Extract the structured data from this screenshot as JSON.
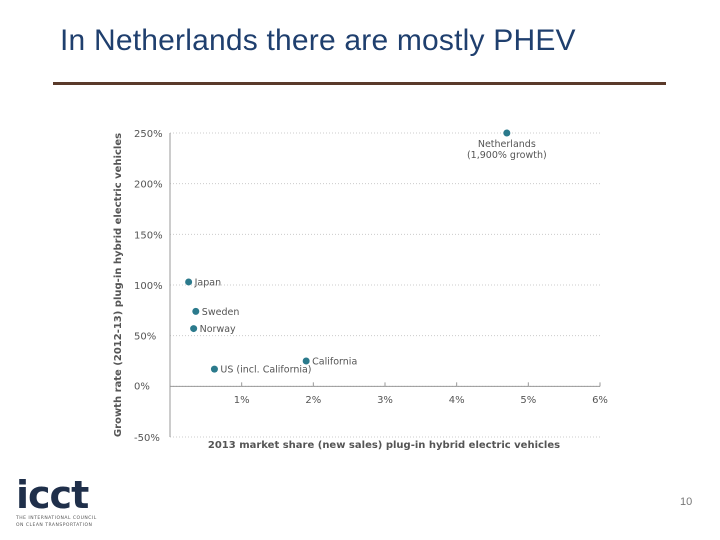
{
  "slide": {
    "title": "In Netherlands there are mostly PHEV",
    "page_number": "10"
  },
  "logo": {
    "name": "icct",
    "tagline_line1": "THE INTERNATIONAL COUNCIL",
    "tagline_line2": "ON CLEAN TRANSPORTATION"
  },
  "colors": {
    "title": "#1f3f6e",
    "rule": "#5a3a2a",
    "point": "#2b7a8c",
    "grid": "#cccccc",
    "text": "#555555"
  },
  "chart_data": {
    "type": "scatter",
    "xlabel": "2013 market share (new sales) plug-in hybrid electric vehicles",
    "ylabel": "Growth rate (2012-13) plug-in hybrid electric vehicles",
    "xlim": [
      0,
      6
    ],
    "ylim": [
      -50,
      250
    ],
    "x_ticks": [
      {
        "value": 1,
        "label": "1%"
      },
      {
        "value": 2,
        "label": "2%"
      },
      {
        "value": 3,
        "label": "3%"
      },
      {
        "value": 4,
        "label": "4%"
      },
      {
        "value": 5,
        "label": "5%"
      },
      {
        "value": 6,
        "label": "6%"
      }
    ],
    "y_ticks": [
      {
        "value": 250,
        "label": "250%"
      },
      {
        "value": 200,
        "label": "200%"
      },
      {
        "value": 150,
        "label": "150%"
      },
      {
        "value": 100,
        "label": "100%"
      },
      {
        "value": 50,
        "label": "50%"
      },
      {
        "value": 0,
        "label": "0%"
      },
      {
        "value": -50,
        "label": "-50%"
      }
    ],
    "grid": true,
    "points": [
      {
        "label": "Netherlands",
        "sublabel": "(1,900% growth)",
        "x": 4.7,
        "y": 250
      },
      {
        "label": "Japan",
        "x": 0.26,
        "y": 103
      },
      {
        "label": "Sweden",
        "x": 0.36,
        "y": 74
      },
      {
        "label": "Norway",
        "x": 0.33,
        "y": 57
      },
      {
        "label": "California",
        "x": 1.9,
        "y": 25
      },
      {
        "label": "US (incl. California)",
        "x": 0.62,
        "y": 17
      }
    ]
  }
}
